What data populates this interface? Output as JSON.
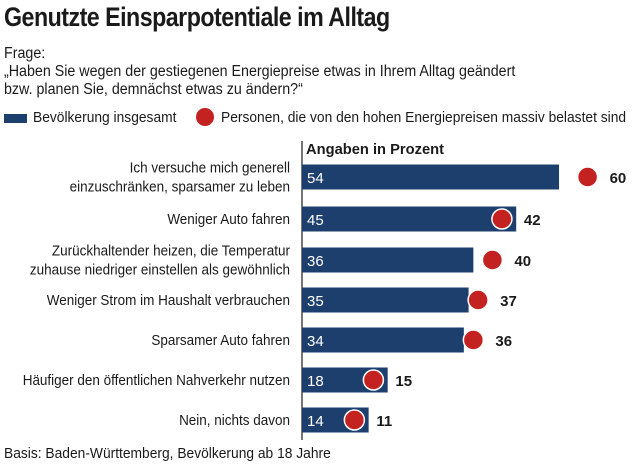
{
  "title": "Genutzte Einsparpotentiale im Alltag",
  "question_label": "Frage:",
  "question_line1": "„Haben Sie wegen der gestiegenen Energiepreise etwas in Ihrem Alltag geändert",
  "question_line2": "bzw. planen Sie, demnächst etwas zu ändern?“",
  "legend": {
    "series1": "Bevölkerung insgesamt",
    "series2": "Personen, die von den hohen Energiepreisen massiv belastet sind"
  },
  "footer": "Basis: Baden-Württemberg, Bevölkerung ab 18 Jahre",
  "colors": {
    "bar": "#1d3f6e",
    "dot": "#c42220",
    "text": "#1a1a1a"
  },
  "chart_data": {
    "type": "bar",
    "orientation": "horizontal",
    "title": "Angaben in Prozent",
    "categories": [
      [
        "Ich versuche mich generell",
        "einzuschränken, sparsamer zu leben"
      ],
      [
        "Weniger Auto fahren"
      ],
      [
        "Zurückhaltender heizen, die Temperatur",
        "zuhause niedriger einstellen als gewöhnlich"
      ],
      [
        "Weniger Strom im Haushalt verbrauchen"
      ],
      [
        "Sparsamer Auto fahren"
      ],
      [
        "Häufiger den öffentlichen Nahverkehr nutzen"
      ],
      [
        "Nein, nichts davon"
      ]
    ],
    "series": [
      {
        "name": "Bevölkerung insgesamt",
        "values": [
          54,
          45,
          36,
          35,
          34,
          18,
          14
        ],
        "mark": "bar"
      },
      {
        "name": "Personen, die von den hohen Energiepreisen massiv belastet sind",
        "values": [
          60,
          42,
          40,
          37,
          36,
          15,
          11
        ],
        "mark": "dot"
      }
    ],
    "xlim": [
      0,
      100
    ],
    "unit": "%"
  }
}
